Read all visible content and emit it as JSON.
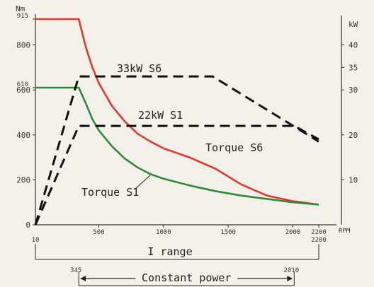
{
  "chart_data": {
    "type": "line",
    "left_axis": {
      "unit": "Nm",
      "range": [
        0,
        915
      ],
      "ticks": [
        "0",
        "200",
        "400",
        "600",
        "800"
      ],
      "extra_ticks": [
        {
          "value": 610,
          "label": "610"
        },
        {
          "value": 915,
          "label": "915"
        }
      ]
    },
    "right_axis": {
      "unit": "kW",
      "range": [
        0,
        45.75
      ],
      "ticks": [
        "10",
        "20",
        "30",
        "35",
        "40"
      ]
    },
    "x_axis": {
      "unit": "RPM",
      "range": [
        10,
        2200
      ],
      "ticks": [
        "500",
        "1000",
        "1500",
        "2000",
        "2200"
      ]
    },
    "series": [
      {
        "name": "Torque S6",
        "axis": "left",
        "color": "#e3382b",
        "x": [
          10,
          345,
          400,
          450,
          500,
          600,
          700,
          800,
          900,
          1000,
          1200,
          1400,
          1600,
          1800,
          2000,
          2200
        ],
        "y": [
          915,
          915,
          790,
          700,
          630,
          530,
          460,
          405,
          370,
          340,
          300,
          250,
          180,
          130,
          105,
          90
        ]
      },
      {
        "name": "Torque S1",
        "axis": "left",
        "color": "#2e8b3a",
        "x": [
          10,
          345,
          400,
          450,
          500,
          600,
          700,
          800,
          900,
          1000,
          1200,
          1400,
          1600,
          1800,
          2000,
          2200
        ],
        "y": [
          610,
          610,
          540,
          470,
          420,
          350,
          295,
          255,
          225,
          205,
          175,
          150,
          130,
          115,
          100,
          90
        ]
      },
      {
        "name": "33kW S6",
        "axis": "right",
        "color": "#111111",
        "dashed": true,
        "x": [
          10,
          345,
          1380,
          2200
        ],
        "y": [
          0,
          33,
          33,
          18.5
        ]
      },
      {
        "name": "22kW S1",
        "axis": "right",
        "color": "#111111",
        "dashed": true,
        "x": [
          10,
          345,
          2010,
          2200
        ],
        "y": [
          0,
          22,
          22,
          19
        ]
      }
    ],
    "ranges": [
      {
        "label": "I range",
        "start": "10",
        "end": "2200"
      },
      {
        "label": "Constant power",
        "start": "345",
        "end": "2010"
      }
    ],
    "grid": false
  }
}
